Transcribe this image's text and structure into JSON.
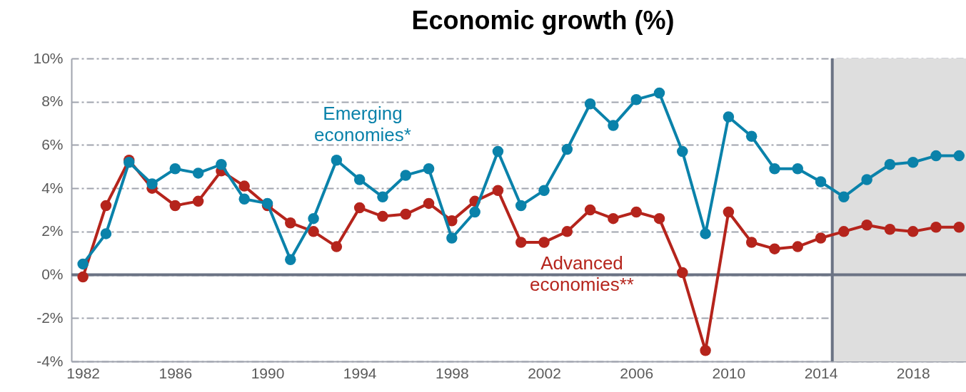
{
  "chart_data": {
    "type": "line",
    "title": "Economic growth (%)",
    "x": [
      1982,
      1983,
      1984,
      1985,
      1986,
      1987,
      1988,
      1989,
      1990,
      1991,
      1992,
      1993,
      1994,
      1995,
      1996,
      1997,
      1998,
      1999,
      2000,
      2001,
      2002,
      2003,
      2004,
      2005,
      2006,
      2007,
      2008,
      2009,
      2010,
      2011,
      2012,
      2013,
      2014,
      2015,
      2016,
      2017,
      2018,
      2019,
      2020
    ],
    "series": [
      {
        "name": "Emerging economies*",
        "color": "#0a82aa",
        "values": [
          0.5,
          1.9,
          5.2,
          4.2,
          4.9,
          4.7,
          5.1,
          3.5,
          3.3,
          0.7,
          2.6,
          5.3,
          4.4,
          3.6,
          4.6,
          4.9,
          1.7,
          2.9,
          5.7,
          3.2,
          3.9,
          5.8,
          7.9,
          6.9,
          8.1,
          8.4,
          5.7,
          1.9,
          7.3,
          6.4,
          4.9,
          4.9,
          4.3,
          3.6,
          4.4,
          5.1,
          5.2,
          5.5,
          5.5
        ]
      },
      {
        "name": "Advanced economies**",
        "color": "#b5241c",
        "values": [
          -0.1,
          3.2,
          5.3,
          4.0,
          3.2,
          3.4,
          4.8,
          4.1,
          3.2,
          2.4,
          2.0,
          1.3,
          3.1,
          2.7,
          2.8,
          3.3,
          2.5,
          3.4,
          3.9,
          1.5,
          1.5,
          2.0,
          3.0,
          2.6,
          2.9,
          2.6,
          0.1,
          -3.5,
          2.9,
          1.5,
          1.2,
          1.3,
          1.7,
          2.0,
          2.3,
          2.1,
          2.0,
          2.2,
          2.2
        ]
      }
    ],
    "xlim": [
      1981.5,
      2020.3
    ],
    "xticks": [
      1982,
      1986,
      1990,
      1994,
      1998,
      2002,
      2006,
      2010,
      2014,
      2018
    ],
    "ylim": [
      -4,
      10
    ],
    "yticks": [
      {
        "value": -4,
        "label": "-4%"
      },
      {
        "value": -2,
        "label": "-2%"
      },
      {
        "value": 0,
        "label": "0%"
      },
      {
        "value": 2,
        "label": "2%"
      },
      {
        "value": 4,
        "label": "4%"
      },
      {
        "value": 6,
        "label": "6%"
      },
      {
        "value": 8,
        "label": "8%"
      },
      {
        "value": 10,
        "label": "10%"
      }
    ],
    "grid": "y",
    "marker": "circle",
    "line_style": "solid",
    "legend": false,
    "bands": [
      {
        "axis": "x",
        "from": 2014.5,
        "to": 2020.3,
        "color": "#dedede"
      }
    ],
    "ref_lines": [
      {
        "axis": "x",
        "value": 2014.5,
        "color": "#6b7384"
      },
      {
        "axis": "y",
        "value": 0,
        "color": "#6b7384"
      }
    ]
  }
}
